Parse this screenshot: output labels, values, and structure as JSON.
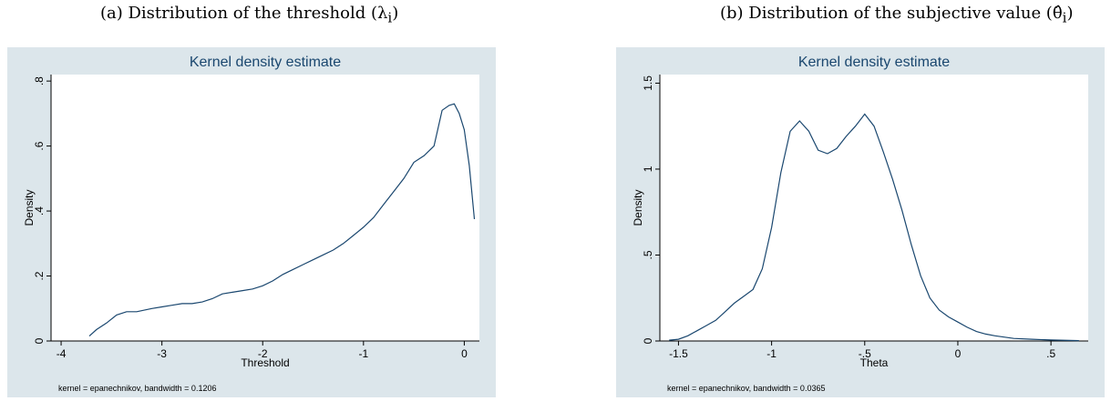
{
  "captions": {
    "a": "(a) Distribution of the threshold (λ",
    "a_sub": "i",
    "b": "(b) Distribution of the subjective value (θ̂",
    "b_sub": "i"
  },
  "chart_data": [
    {
      "type": "line",
      "title": "Kernel density estimate",
      "xlabel": "Threshold",
      "ylabel": "Density",
      "note": "kernel = epanechnikov, bandwidth = 0.1206",
      "xlim": [
        -4.1,
        0.15
      ],
      "ylim": [
        0,
        0.82
      ],
      "xticks": [
        -4,
        -3,
        -2,
        -1,
        0
      ],
      "xticklabels": [
        "-4",
        "-3",
        "-2",
        "-1",
        "0"
      ],
      "yticks": [
        0,
        0.2,
        0.4,
        0.6,
        0.8
      ],
      "yticklabels": [
        "0",
        ".2",
        ".4",
        ".6",
        ".8"
      ],
      "colors": {
        "outer_bg": "#dce6eb",
        "plot_bg": "#ffffff",
        "line": "#1a476f",
        "title": "#1a476f"
      },
      "series": [
        {
          "x": [
            -3.72,
            -3.65,
            -3.55,
            -3.45,
            -3.35,
            -3.25,
            -3.1,
            -3.0,
            -2.9,
            -2.8,
            -2.7,
            -2.6,
            -2.5,
            -2.4,
            -2.3,
            -2.2,
            -2.1,
            -2.0,
            -1.9,
            -1.8,
            -1.7,
            -1.6,
            -1.5,
            -1.4,
            -1.3,
            -1.2,
            -1.1,
            -1.0,
            -0.9,
            -0.8,
            -0.7,
            -0.6,
            -0.5,
            -0.4,
            -0.3,
            -0.22,
            -0.15,
            -0.1,
            -0.05,
            0.0,
            0.05,
            0.1
          ],
          "y": [
            0.015,
            0.035,
            0.055,
            0.08,
            0.09,
            0.09,
            0.1,
            0.105,
            0.11,
            0.115,
            0.115,
            0.12,
            0.13,
            0.145,
            0.15,
            0.155,
            0.16,
            0.17,
            0.185,
            0.205,
            0.22,
            0.235,
            0.25,
            0.265,
            0.28,
            0.3,
            0.325,
            0.35,
            0.38,
            0.42,
            0.46,
            0.5,
            0.55,
            0.57,
            0.6,
            0.71,
            0.725,
            0.73,
            0.7,
            0.65,
            0.54,
            0.375
          ]
        }
      ]
    },
    {
      "type": "line",
      "title": "Kernel density estimate",
      "xlabel": "Theta",
      "ylabel": "Density",
      "note": "kernel = epanechnikov, bandwidth = 0.0365",
      "xlim": [
        -1.6,
        0.7
      ],
      "ylim": [
        0,
        1.55
      ],
      "xticks": [
        -1.5,
        -1,
        -0.5,
        0,
        0.5
      ],
      "xticklabels": [
        "-1.5",
        "-1",
        "-.5",
        "0",
        ".5"
      ],
      "yticks": [
        0,
        0.5,
        1,
        1.5
      ],
      "yticklabels": [
        "0",
        ".5",
        "1",
        "1.5"
      ],
      "colors": {
        "outer_bg": "#dce6eb",
        "plot_bg": "#ffffff",
        "line": "#1a476f",
        "title": "#1a476f"
      },
      "series": [
        {
          "x": [
            -1.55,
            -1.5,
            -1.45,
            -1.4,
            -1.35,
            -1.3,
            -1.25,
            -1.2,
            -1.15,
            -1.1,
            -1.05,
            -1.0,
            -0.95,
            -0.9,
            -0.85,
            -0.8,
            -0.75,
            -0.7,
            -0.65,
            -0.6,
            -0.55,
            -0.5,
            -0.45,
            -0.4,
            -0.35,
            -0.3,
            -0.25,
            -0.2,
            -0.15,
            -0.1,
            -0.05,
            0.0,
            0.05,
            0.1,
            0.15,
            0.2,
            0.3,
            0.4,
            0.5,
            0.6,
            0.65
          ],
          "y": [
            0.005,
            0.01,
            0.03,
            0.06,
            0.09,
            0.12,
            0.17,
            0.22,
            0.26,
            0.3,
            0.42,
            0.66,
            0.98,
            1.22,
            1.28,
            1.22,
            1.11,
            1.09,
            1.12,
            1.19,
            1.25,
            1.32,
            1.25,
            1.1,
            0.94,
            0.76,
            0.56,
            0.38,
            0.25,
            0.18,
            0.14,
            0.11,
            0.08,
            0.055,
            0.04,
            0.03,
            0.015,
            0.01,
            0.006,
            0.003,
            0.002
          ]
        }
      ]
    }
  ]
}
